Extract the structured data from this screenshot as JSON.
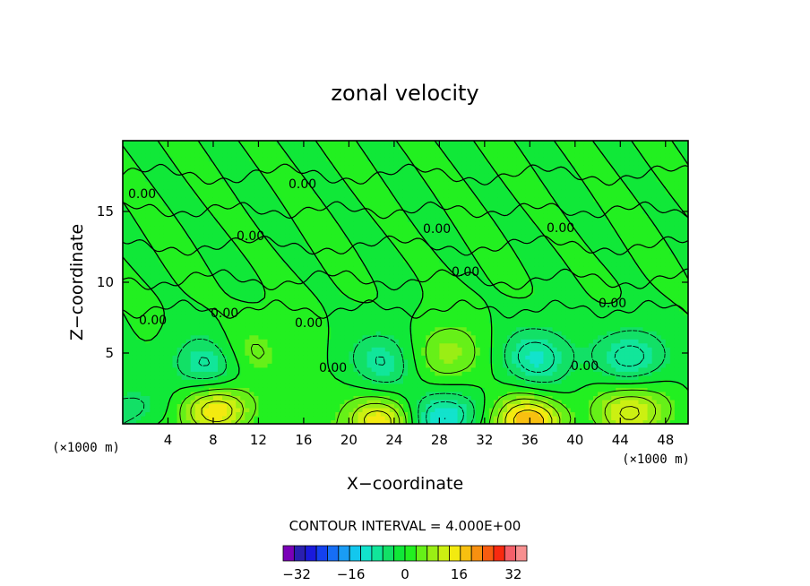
{
  "chart_data": {
    "type": "heatmap",
    "title": "zonal velocity",
    "xlabel": "X−coordinate",
    "ylabel": "Z−coordinate",
    "x_unit": "(×1000 m)",
    "z_unit": "(×1000 m)",
    "xlim": [
      0,
      50
    ],
    "ylim": [
      0,
      20
    ],
    "x_ticks": [
      4,
      8,
      12,
      16,
      20,
      24,
      28,
      32,
      36,
      40,
      44,
      48
    ],
    "y_ticks": [
      5,
      10,
      15
    ],
    "contour_interval_text": "CONTOUR INTERVAL = 4.000E+00",
    "contour_interval": 4,
    "contour_labels": [
      "0.00",
      "0.00",
      "0.00",
      "0.00",
      "0.00",
      "0.00",
      "0.00",
      "0.00",
      "0.00",
      "0.00",
      "0.00",
      "0.00"
    ],
    "colorbar": {
      "min": -36,
      "max": 36,
      "ticks": [
        -32,
        -16,
        0,
        16,
        32
      ],
      "tick_labels": [
        "−32",
        "−16",
        "0",
        "16",
        "32"
      ],
      "colors": [
        "#7a00b8",
        "#2a1fb0",
        "#1a1adc",
        "#1441ef",
        "#166ef5",
        "#1a9cf5",
        "#13c7ee",
        "#12e3cc",
        "#11e69a",
        "#12e066",
        "#10e838",
        "#22f020",
        "#66f018",
        "#9aee14",
        "#ccf012",
        "#f3ea10",
        "#f8c010",
        "#f89010",
        "#f85c10",
        "#f82a10",
        "#f5606a",
        "#f79090"
      ]
    },
    "field_features": [
      {
        "kind": "max",
        "x": 8.5,
        "z": 1.0,
        "value": 16
      },
      {
        "kind": "max",
        "x": 23.0,
        "z": 0.2,
        "value": 16
      },
      {
        "kind": "max",
        "x": 36.0,
        "z": 0.2,
        "value": 20
      },
      {
        "kind": "max",
        "x": 45.0,
        "z": 1.0,
        "value": 12
      },
      {
        "kind": "max",
        "x": 28.5,
        "z": 5.0,
        "value": 8
      },
      {
        "kind": "max",
        "x": 11.0,
        "z": 5.0,
        "value": 6
      },
      {
        "kind": "min",
        "x": 7.5,
        "z": 4.2,
        "value": -10
      },
      {
        "kind": "min",
        "x": 23.0,
        "z": 4.5,
        "value": -8
      },
      {
        "kind": "min",
        "x": 36.5,
        "z": 4.7,
        "value": -10
      },
      {
        "kind": "min",
        "x": 45.0,
        "z": 4.7,
        "value": -10
      },
      {
        "kind": "min",
        "x": 28.5,
        "z": 0.5,
        "value": -14
      },
      {
        "kind": "min",
        "x": 1.0,
        "z": 1.0,
        "value": -6
      }
    ]
  }
}
